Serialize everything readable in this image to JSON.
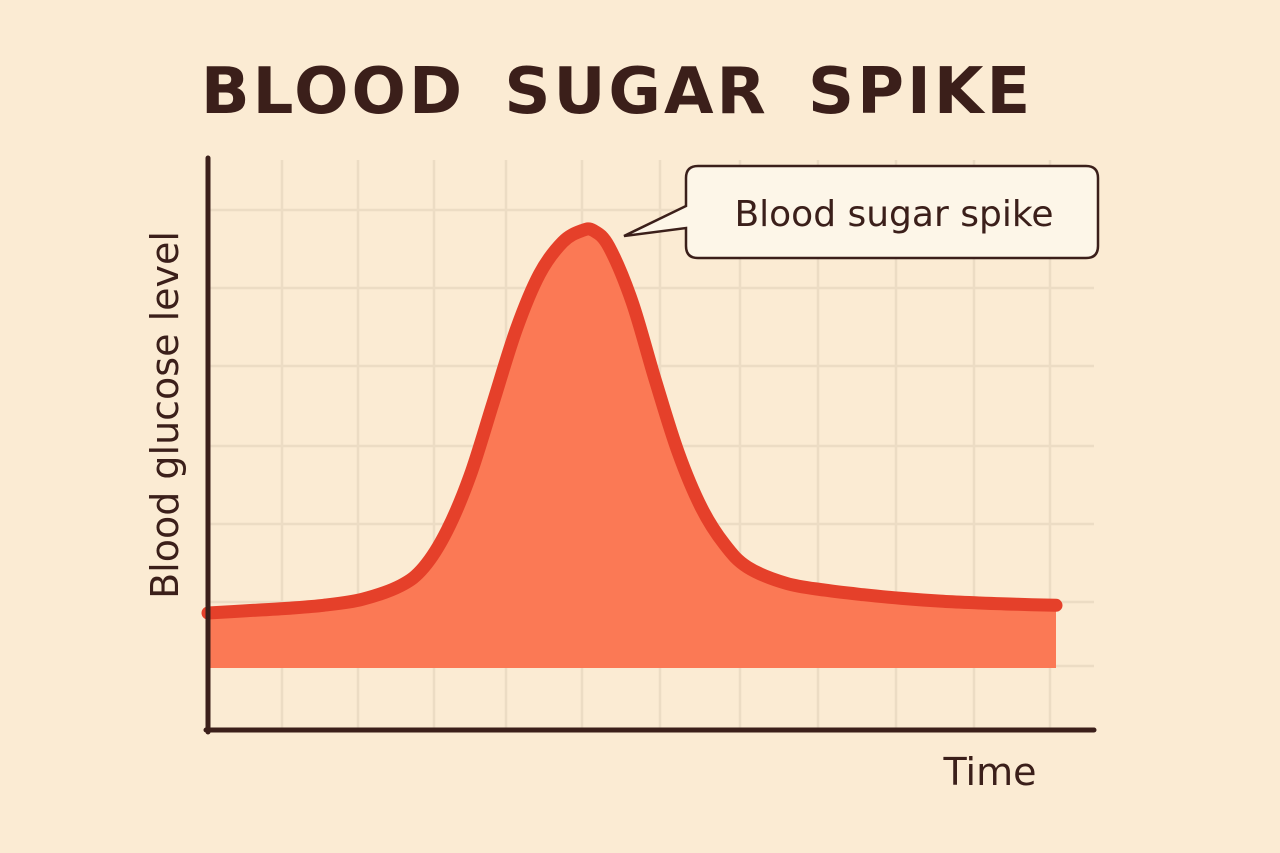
{
  "chart_data": {
    "type": "area",
    "title": "BLOOD SUGAR SPIKE",
    "xlabel": "Time",
    "ylabel": "Blood glucose level",
    "grid": true,
    "legend": "none",
    "xlim": [
      0,
      11
    ],
    "ylim": [
      0,
      10
    ],
    "annotation": {
      "text": "Blood sugar spike",
      "x": 4.95,
      "y": 9.5
    },
    "series": [
      {
        "x": [
          0,
          0.5,
          1,
          1.5,
          2,
          2.5,
          2.8,
          3.1,
          3.4,
          3.7,
          4.0,
          4.3,
          4.6,
          4.85,
          5.0,
          5.2,
          5.5,
          5.8,
          6.1,
          6.4,
          6.7,
          7.0,
          7.5,
          8,
          8.5,
          9,
          9.5,
          10,
          10.5,
          11
        ],
        "values": [
          1.2,
          1.25,
          1.3,
          1.37,
          1.5,
          1.8,
          2.2,
          3.0,
          4.2,
          5.8,
          7.4,
          8.6,
          9.3,
          9.55,
          9.55,
          9.2,
          8.0,
          6.3,
          4.7,
          3.5,
          2.7,
          2.2,
          1.85,
          1.7,
          1.6,
          1.52,
          1.46,
          1.42,
          1.39,
          1.37
        ],
        "color": "#e5402a",
        "fill": "#fb7955"
      }
    ]
  }
}
